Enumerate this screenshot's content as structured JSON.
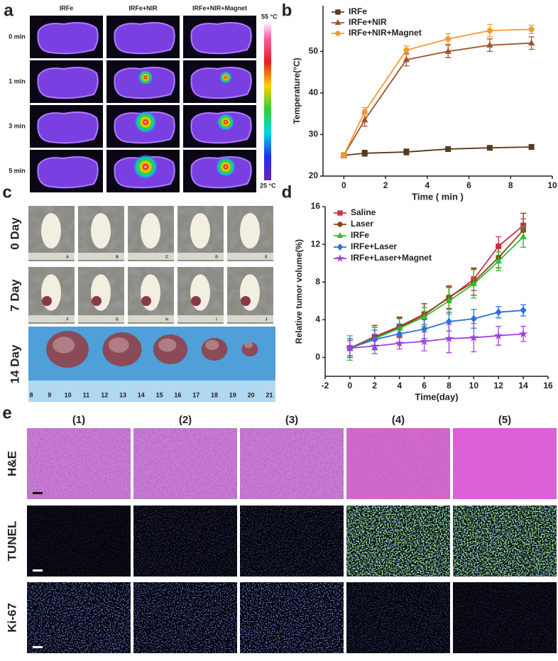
{
  "panel_labels": [
    "a",
    "b",
    "c",
    "d",
    "e"
  ],
  "panel_a": {
    "columns": [
      "IRFe",
      "IRFe+NIR",
      "IRFe+NIR+Magnet"
    ],
    "rows": [
      "0 min",
      "1 min",
      "3 min",
      "5 min"
    ],
    "scale_max": "55 °C",
    "scale_min": "25 °C"
  },
  "panel_c": {
    "rows": [
      "0 Day",
      "7 Day",
      "14 Day"
    ],
    "photo_labels": [
      "A",
      "B",
      "C",
      "D",
      "E",
      "F",
      "G",
      "H",
      "I",
      "J"
    ],
    "ruler_labels": [
      "8",
      "9",
      "10",
      "11",
      "12",
      "13",
      "14",
      "15",
      "16",
      "17",
      "18",
      "19",
      "20",
      "21"
    ]
  },
  "panel_e": {
    "columns": [
      "(1)",
      "(2)",
      "(3)",
      "(4)",
      "(5)"
    ],
    "rows": [
      "H&E",
      "TUNEL",
      "Ki-67"
    ]
  },
  "chart_data": [
    {
      "type": "line",
      "x_label": "Time ( min )",
      "y_label": "Temperature(°C)",
      "x": [
        0,
        1,
        3,
        5,
        7,
        9
      ],
      "xlim": [
        -1,
        10
      ],
      "ylim": [
        20,
        61
      ],
      "xticks": [
        0,
        2,
        4,
        6,
        8,
        10
      ],
      "yticks": [
        20,
        30,
        40,
        50
      ],
      "legend": "upper left",
      "legend_text": "plain",
      "series": [
        {
          "name": "IRFe",
          "color": "#5a3a1a",
          "marker": "square",
          "values": [
            25,
            25.5,
            25.8,
            26.5,
            26.8,
            27
          ],
          "errors": [
            0.6,
            0.7,
            0.7,
            0.5,
            0.5,
            0.6
          ]
        },
        {
          "name": "IRFe+NIR",
          "color": "#a0522d",
          "marker": "triangle",
          "values": [
            25,
            33.5,
            48,
            50,
            51.5,
            52
          ],
          "errors": [
            0.6,
            1.5,
            1.5,
            1.5,
            1.5,
            1.5
          ]
        },
        {
          "name": "IRFe+NIR+Magnet",
          "color": "#f39a2e",
          "marker": "circle",
          "values": [
            25,
            35.5,
            50.3,
            53,
            55,
            55.3
          ],
          "errors": [
            0.6,
            1,
            1,
            1.3,
            1.5,
            1
          ]
        }
      ]
    },
    {
      "type": "line",
      "x_label": "Time(day)",
      "y_label": "Relative tumor volume(%)",
      "x": [
        0,
        2,
        4,
        6,
        8,
        10,
        12,
        14
      ],
      "xlim": [
        -2,
        16
      ],
      "ylim": [
        -2,
        16
      ],
      "xticks": [
        -2,
        0,
        2,
        4,
        6,
        8,
        10,
        12,
        14,
        16
      ],
      "yticks": [
        0,
        4,
        8,
        12,
        16
      ],
      "legend": "upper left",
      "legend_text": "colored",
      "series": [
        {
          "name": "Saline",
          "color": "#d0304a",
          "marker": "square",
          "values": [
            1,
            2.2,
            3.3,
            4.6,
            6.3,
            8.3,
            11.8,
            14
          ],
          "errors": [
            0.8,
            1,
            1,
            1.1,
            1.2,
            1.2,
            1,
            0.7
          ]
        },
        {
          "name": "Laser",
          "color": "#8b4513",
          "marker": "circle",
          "values": [
            1,
            2.1,
            3.2,
            4.5,
            6.4,
            8,
            10.6,
            13.5
          ],
          "errors": [
            1,
            1.3,
            1,
            1.2,
            1.2,
            1.4,
            1.1,
            1.8
          ]
        },
        {
          "name": "IRFe",
          "color": "#2ebf2e",
          "marker": "triangle",
          "values": [
            1,
            2,
            3.1,
            4.3,
            6,
            7.8,
            10.2,
            12.8
          ],
          "errors": [
            1.3,
            1.2,
            1,
            1,
            1.4,
            1.5,
            1,
            1.1
          ]
        },
        {
          "name": "IRFe+Laser",
          "color": "#2a6fe0",
          "marker": "diamond",
          "values": [
            1,
            1.9,
            2.5,
            3,
            3.8,
            4.1,
            4.8,
            5
          ],
          "errors": [
            1,
            1,
            1,
            1,
            1,
            1,
            0.6,
            0.6
          ]
        },
        {
          "name": "IRFe+Laser+Magnet",
          "color": "#a040e0",
          "marker": "star",
          "values": [
            1,
            1.2,
            1.5,
            1.7,
            2,
            2.1,
            2.3,
            2.5
          ],
          "errors": [
            0.8,
            0.8,
            0.6,
            1,
            1.5,
            1.5,
            1,
            0.8
          ]
        }
      ]
    }
  ]
}
